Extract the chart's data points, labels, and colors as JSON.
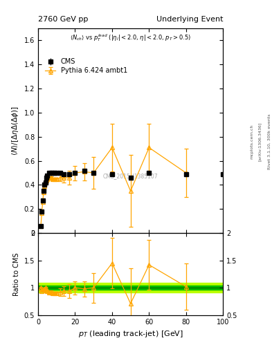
{
  "title_left": "2760 GeV pp",
  "title_right": "Underlying Event",
  "watermark": "CMS_2015_I1385107",
  "cms_x": [
    1.5,
    2.0,
    2.5,
    3.0,
    3.5,
    4.0,
    4.5,
    5.0,
    6.0,
    7.0,
    8.0,
    9.0,
    10.0,
    12.0,
    14.0,
    17.0,
    20.0,
    25.0,
    30.0,
    40.0,
    50.0,
    60.0,
    80.0,
    100.0
  ],
  "cms_y": [
    0.06,
    0.18,
    0.27,
    0.35,
    0.4,
    0.42,
    0.46,
    0.48,
    0.5,
    0.5,
    0.5,
    0.5,
    0.5,
    0.5,
    0.49,
    0.49,
    0.5,
    0.52,
    0.5,
    0.49,
    0.46,
    0.5,
    0.49,
    0.49
  ],
  "cms_yerr": [
    0.005,
    0.005,
    0.005,
    0.005,
    0.005,
    0.005,
    0.005,
    0.005,
    0.005,
    0.005,
    0.005,
    0.005,
    0.005,
    0.005,
    0.005,
    0.005,
    0.01,
    0.01,
    0.01,
    0.01,
    0.01,
    0.01,
    0.01,
    0.01
  ],
  "mc_x": [
    1.5,
    2.0,
    2.5,
    3.0,
    3.5,
    4.0,
    4.5,
    5.0,
    6.0,
    7.0,
    8.0,
    9.0,
    10.0,
    12.0,
    14.0,
    17.0,
    20.0,
    25.0,
    30.0,
    40.0,
    50.0,
    60.0,
    80.0
  ],
  "mc_y": [
    0.06,
    0.17,
    0.26,
    0.34,
    0.39,
    0.42,
    0.44,
    0.45,
    0.46,
    0.46,
    0.45,
    0.45,
    0.45,
    0.46,
    0.46,
    0.46,
    0.5,
    0.51,
    0.5,
    0.71,
    0.35,
    0.71,
    0.5
  ],
  "mc_yerr": [
    0.005,
    0.005,
    0.005,
    0.005,
    0.005,
    0.005,
    0.005,
    0.01,
    0.01,
    0.01,
    0.01,
    0.01,
    0.01,
    0.03,
    0.04,
    0.06,
    0.06,
    0.07,
    0.13,
    0.2,
    0.3,
    0.2,
    0.2
  ],
  "ratio_x": [
    1.5,
    2.0,
    2.5,
    3.0,
    3.5,
    4.0,
    4.5,
    5.0,
    6.0,
    7.0,
    8.0,
    9.0,
    10.0,
    12.0,
    14.0,
    17.0,
    20.0,
    25.0,
    30.0,
    40.0,
    50.0,
    60.0,
    80.0
  ],
  "ratio_y": [
    1.0,
    0.94,
    0.96,
    0.97,
    0.975,
    1.0,
    0.957,
    0.938,
    0.92,
    0.92,
    0.9,
    0.9,
    0.9,
    0.92,
    0.94,
    0.94,
    1.0,
    0.98,
    1.0,
    1.45,
    0.71,
    1.42,
    1.02
  ],
  "ratio_yerr": [
    0.01,
    0.01,
    0.01,
    0.01,
    0.01,
    0.01,
    0.01,
    0.02,
    0.03,
    0.03,
    0.03,
    0.03,
    0.03,
    0.07,
    0.09,
    0.13,
    0.12,
    0.14,
    0.27,
    0.46,
    0.65,
    0.45,
    0.42
  ],
  "cms_band_inner": 0.04,
  "cms_band_outer": 0.09,
  "main_ylim": [
    0.0,
    1.7
  ],
  "ratio_ylim": [
    0.5,
    2.0
  ],
  "xlim": [
    0,
    100
  ],
  "cms_color": "#000000",
  "mc_color": "#FFA500",
  "band_inner_color": "#00BB00",
  "band_outer_color": "#BBFF00",
  "main_yticks": [
    0.0,
    0.2,
    0.4,
    0.6,
    0.8,
    1.0,
    1.2,
    1.4,
    1.6
  ],
  "ratio_yticks": [
    0.5,
    1.0,
    1.5,
    2.0
  ]
}
